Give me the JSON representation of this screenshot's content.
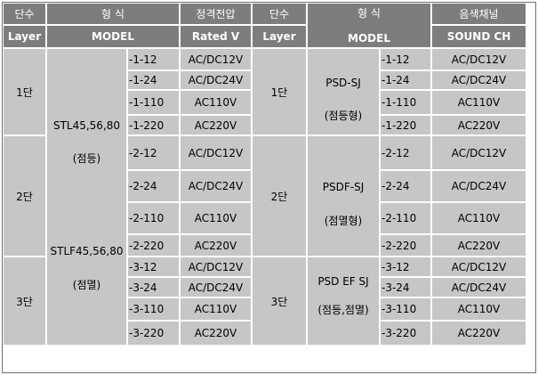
{
  "header": {
    "layer_kr": "단수",
    "layer_en": "Layer",
    "model_kr": "형 식",
    "model_en": "MODEL",
    "voltage_kr": "정격전압",
    "voltage_en": "Rated V",
    "sound_kr": "음색채널",
    "sound_en": "SOUND CH"
  },
  "layers": [
    "1단",
    "2단",
    "3단"
  ],
  "left_models": {
    "stl_name": "STL45,56,80",
    "stl_type": "(점등)",
    "stlf_name": "STLF45,56,80",
    "stlf_type": "(점멸)"
  },
  "left_rows": [
    {
      "suffix": "-1-12",
      "voltage": "AC/DC12V"
    },
    {
      "suffix": "-1-24",
      "voltage": "AC/DC24V"
    },
    {
      "suffix": "-1-110",
      "voltage": "AC110V"
    },
    {
      "suffix": "-1-220",
      "voltage": "AC220V"
    },
    {
      "suffix": "-2-12",
      "voltage": "AC/DC12V"
    },
    {
      "suffix": "-2-24",
      "voltage": "AC/DC24V"
    },
    {
      "suffix": "-2-110",
      "voltage": "AC110V"
    },
    {
      "suffix": "-2-220",
      "voltage": "AC220V"
    },
    {
      "suffix": "-3-12",
      "voltage": "AC/DC12V"
    },
    {
      "suffix": "-3-24",
      "voltage": "AC/DC24V"
    },
    {
      "suffix": "-3-110",
      "voltage": "AC110V"
    },
    {
      "suffix": "-3-220",
      "voltage": "AC220V"
    }
  ],
  "right_models": [
    {
      "name": "PSD-SJ",
      "type": "(점등형)"
    },
    {
      "name": "PSDF-SJ",
      "type": "(점멸형)"
    },
    {
      "name": "PSD EF SJ",
      "type": "(점등,점멸)"
    }
  ],
  "right_rows": [
    {
      "suffix": "-1-12",
      "sound": "AC/DC12V"
    },
    {
      "suffix": "-1-24",
      "sound": "AC/DC24V"
    },
    {
      "suffix": "-1-110",
      "sound": "AC110V"
    },
    {
      "suffix": "-1-220",
      "sound": "AC220V"
    },
    {
      "suffix": "-2-12",
      "sound": "AC/DC12V"
    },
    {
      "suffix": "-2-24",
      "sound": "AC/DC24V"
    },
    {
      "suffix": "-2-110",
      "sound": "AC110V"
    },
    {
      "suffix": "-2-220",
      "sound": "AC220V"
    },
    {
      "suffix": "-3-12",
      "sound": "AC/DC12V"
    },
    {
      "suffix": "-3-24",
      "sound": "AC/DC24V"
    },
    {
      "suffix": "-3-110",
      "sound": "AC110V"
    },
    {
      "suffix": "-3-220",
      "sound": "AC220V"
    }
  ],
  "colors": {
    "header_bg": "#7d7d7d",
    "cell_bg": "#c6c6c6",
    "border": "#6e6e6e"
  }
}
